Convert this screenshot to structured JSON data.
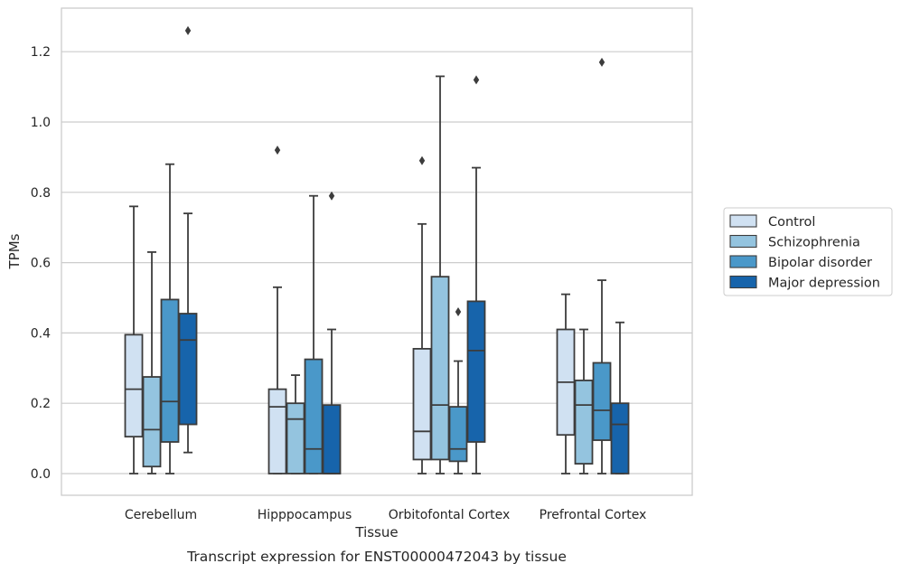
{
  "chart_data": {
    "type": "box",
    "xlabel": "Tissue",
    "ylabel": "TPMs",
    "caption": "Transcript expression for ENST00000472043 by tissue",
    "ylim": [
      -0.06,
      1.32
    ],
    "yticks": [
      0.0,
      0.2,
      0.4,
      0.6,
      0.8,
      1.0,
      1.2
    ],
    "ytick_labels": [
      "0.0",
      "0.2",
      "0.4",
      "0.6",
      "0.8",
      "1.0",
      "1.2"
    ],
    "grid": "horizontal",
    "legend_position": "right",
    "categories": [
      "Cerebellum",
      "Hipppocampus",
      "Orbitofontal Cortex",
      "Prefrontal Cortex"
    ],
    "series": [
      {
        "name": "Control",
        "color": "#d0e1f2",
        "boxes": [
          {
            "whislo": 0.0,
            "q1": 0.105,
            "med": 0.24,
            "q3": 0.395,
            "whishi": 0.76,
            "fliers": []
          },
          {
            "whislo": 0.0,
            "q1": 0.0,
            "med": 0.19,
            "q3": 0.24,
            "whishi": 0.53,
            "fliers": [
              0.92
            ]
          },
          {
            "whislo": 0.0,
            "q1": 0.04,
            "med": 0.12,
            "q3": 0.355,
            "whishi": 0.71,
            "fliers": [
              0.89
            ]
          },
          {
            "whislo": 0.0,
            "q1": 0.11,
            "med": 0.26,
            "q3": 0.41,
            "whishi": 0.51,
            "fliers": []
          }
        ]
      },
      {
        "name": "Schizophrenia",
        "color": "#94c4df",
        "boxes": [
          {
            "whislo": 0.0,
            "q1": 0.02,
            "med": 0.125,
            "q3": 0.275,
            "whishi": 0.63,
            "fliers": []
          },
          {
            "whislo": 0.0,
            "q1": 0.0,
            "med": 0.155,
            "q3": 0.2,
            "whishi": 0.28,
            "fliers": []
          },
          {
            "whislo": 0.0,
            "q1": 0.04,
            "med": 0.195,
            "q3": 0.56,
            "whishi": 1.13,
            "fliers": []
          },
          {
            "whislo": 0.0,
            "q1": 0.028,
            "med": 0.195,
            "q3": 0.265,
            "whishi": 0.41,
            "fliers": []
          }
        ]
      },
      {
        "name": "Bipolar disorder",
        "color": "#4a98c9",
        "boxes": [
          {
            "whislo": 0.0,
            "q1": 0.09,
            "med": 0.205,
            "q3": 0.495,
            "whishi": 0.88,
            "fliers": []
          },
          {
            "whislo": 0.0,
            "q1": 0.0,
            "med": 0.07,
            "q3": 0.325,
            "whishi": 0.79,
            "fliers": []
          },
          {
            "whislo": 0.0,
            "q1": 0.035,
            "med": 0.07,
            "q3": 0.19,
            "whishi": 0.32,
            "fliers": [
              0.46
            ]
          },
          {
            "whislo": 0.0,
            "q1": 0.095,
            "med": 0.18,
            "q3": 0.315,
            "whishi": 0.55,
            "fliers": [
              1.17
            ]
          }
        ]
      },
      {
        "name": "Major depression",
        "color": "#1764ab",
        "boxes": [
          {
            "whislo": 0.06,
            "q1": 0.14,
            "med": 0.38,
            "q3": 0.455,
            "whishi": 0.74,
            "fliers": [
              1.26
            ]
          },
          {
            "whislo": 0.0,
            "q1": 0.0,
            "med": 0.0,
            "q3": 0.195,
            "whishi": 0.41,
            "fliers": [
              0.79
            ]
          },
          {
            "whislo": 0.0,
            "q1": 0.09,
            "med": 0.35,
            "q3": 0.49,
            "whishi": 0.87,
            "fliers": [
              1.12
            ]
          },
          {
            "whislo": 0.0,
            "q1": 0.0,
            "med": 0.14,
            "q3": 0.2,
            "whishi": 0.43,
            "fliers": []
          }
        ]
      }
    ]
  }
}
